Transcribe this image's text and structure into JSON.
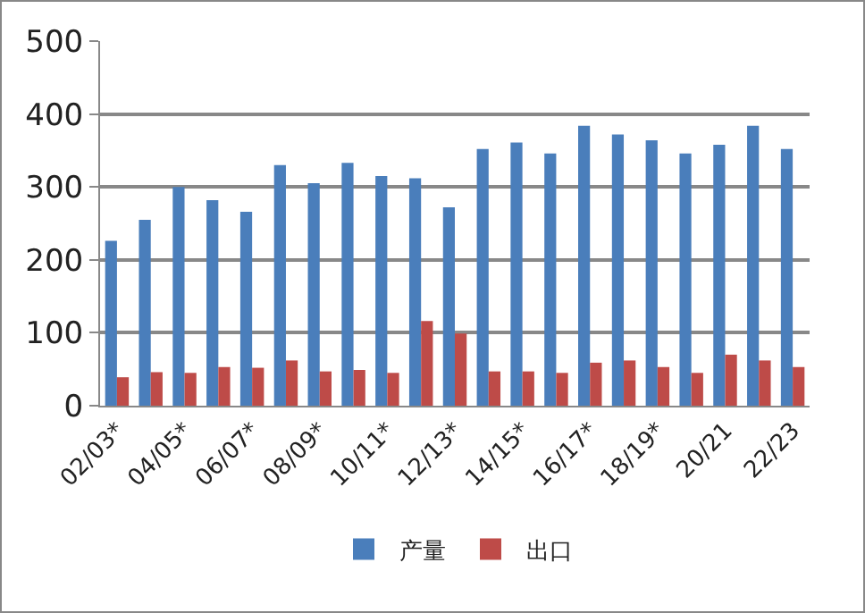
{
  "chart_data": {
    "type": "bar",
    "categories": [
      "02/03*",
      null,
      "04/05*",
      null,
      "06/07*",
      null,
      "08/09*",
      null,
      "10/11*",
      null,
      "12/13*",
      null,
      "14/15*",
      null,
      "16/17*",
      null,
      "18/19*",
      null,
      "20/21",
      null,
      "22/23"
    ],
    "series": [
      {
        "name": "产量",
        "color": "#4a7ebb",
        "values": [
          226,
          255,
          300,
          282,
          266,
          330,
          305,
          333,
          315,
          312,
          272,
          352,
          361,
          346,
          384,
          372,
          364,
          346,
          358,
          384,
          352
        ]
      },
      {
        "name": "出口",
        "color": "#be4b48",
        "values": [
          39,
          46,
          45,
          53,
          52,
          62,
          47,
          49,
          45,
          116,
          99,
          47,
          47,
          45,
          59,
          62,
          53,
          45,
          70,
          62,
          53
        ]
      }
    ],
    "ylim": [
      0,
      500
    ],
    "yticks": [
      0,
      100,
      200,
      300,
      400,
      500
    ],
    "grid": "y",
    "legend": "bottom"
  }
}
